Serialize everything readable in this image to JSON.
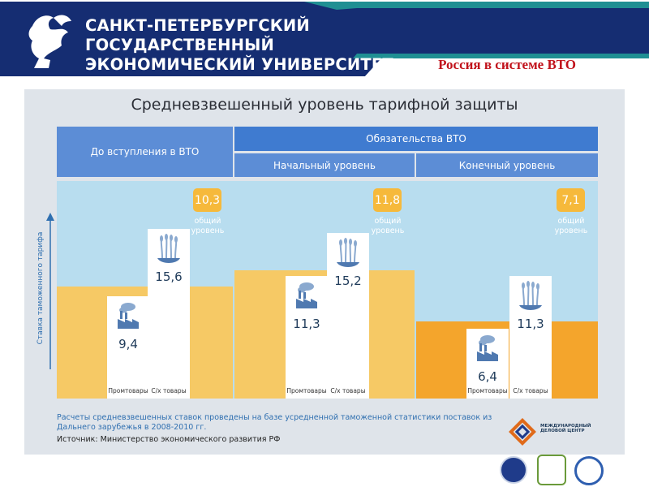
{
  "header": {
    "university": [
      "САНКТ-ПЕТЕРБУРГСКИЙ",
      "ГОСУДАРСТВЕННЫЙ",
      "ЭКОНОМИЧЕСКИЙ УНИВЕРСИТЕТ"
    ],
    "slide_topic": "Россия в системе ВТО",
    "logo": "griffin-logo"
  },
  "colors": {
    "navy": "#152d72",
    "teal": "#1f8f93",
    "header_blue": "#5c8dd6",
    "sky": "#b8ddef",
    "band_light": "#f6c965",
    "band_dark": "#f4a52c",
    "badge": "#f6b93b"
  },
  "chart_data": {
    "type": "bar",
    "title": "Средневзвешенный уровень тарифной защиты",
    "ylabel": "Ставка таможенного тарифа",
    "column_groups": [
      {
        "header": "До вступления в ВТО",
        "parent": ""
      },
      {
        "header": "Начальный уровень",
        "parent": "Обязательства ВТО"
      },
      {
        "header": "Конечный уровень",
        "parent": "Обязательства ВТО"
      }
    ],
    "parent_header": "Обязательства ВТО",
    "series": [
      {
        "name": "Промтовары",
        "values": [
          9.4,
          11.3,
          6.4
        ],
        "labels": [
          "9,4",
          "11,3",
          "6,4"
        ]
      },
      {
        "name": "С/х товары",
        "values": [
          15.6,
          15.2,
          11.3
        ],
        "labels": [
          "15,6",
          "15,2",
          "11,3"
        ]
      }
    ],
    "overall": {
      "name": "общий уровень",
      "values": [
        10.3,
        11.8,
        7.1
      ],
      "labels": [
        "10,3",
        "11,8",
        "7,1"
      ]
    },
    "ylim": [
      0,
      20
    ]
  },
  "panel": {
    "note": "Расчеты средневзвешенных ставок проведены на базе усредненной таможенной статистики поставок из Дальнего зарубежья в 2008-2010 гг.",
    "source": "Источник: Министерство экономического развития РФ",
    "org": [
      "МЕЖДУНАРОДНЫЙ",
      "ДЕЛОВОЙ ЦЕНТР"
    ]
  }
}
